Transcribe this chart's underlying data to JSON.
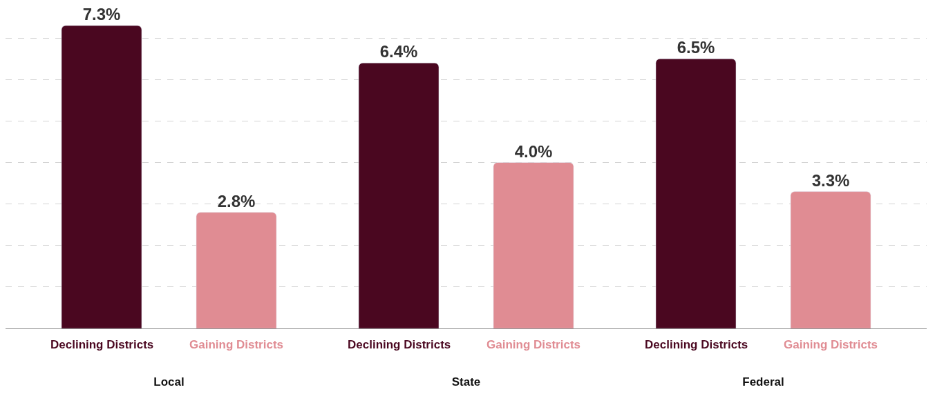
{
  "chart_data": {
    "type": "bar",
    "categories": [
      "Local",
      "State",
      "Federal"
    ],
    "series": [
      {
        "name": "Declining Districts",
        "color": "#4a0720",
        "values": [
          7.3,
          6.4,
          6.5
        ],
        "value_labels": [
          "7.3%",
          "6.4%",
          "6.5%"
        ]
      },
      {
        "name": "Gaining Districts",
        "color": "#e08c93",
        "values": [
          2.8,
          4.0,
          3.3
        ],
        "value_labels": [
          "2.8%",
          "4.0%",
          "3.3%"
        ]
      }
    ],
    "grid": "y",
    "legend": false,
    "tick_labels": "x"
  }
}
